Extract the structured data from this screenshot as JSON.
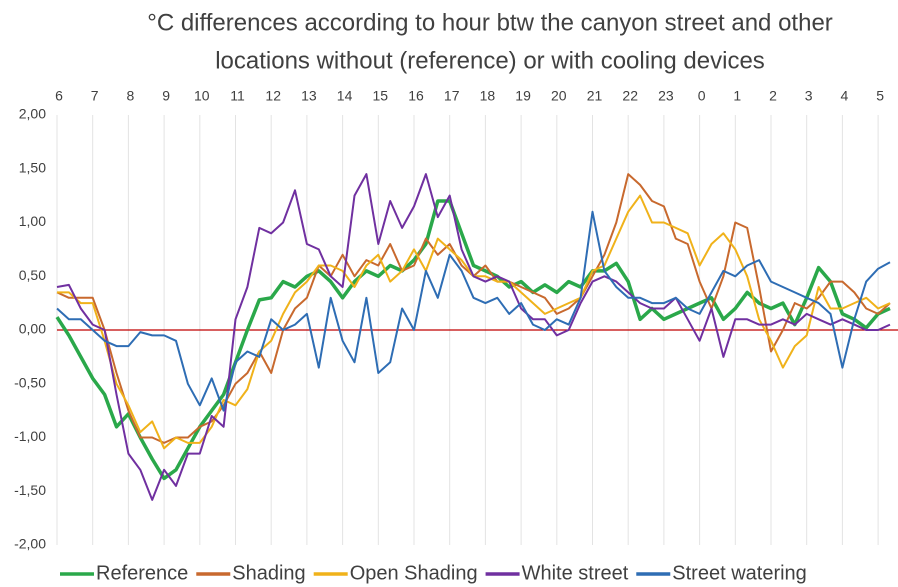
{
  "chart_data": {
    "type": "line",
    "title": [
      "°C differences according to hour  btw the canyon street and other",
      "locations without (reference) or with cooling devices"
    ],
    "categories": [
      "6",
      null,
      null,
      "7",
      null,
      null,
      "8",
      null,
      null,
      "9",
      null,
      null,
      "10",
      null,
      null,
      "11",
      null,
      null,
      "12",
      null,
      null,
      "13",
      null,
      null,
      "14",
      null,
      null,
      "15",
      null,
      null,
      "16",
      null,
      null,
      "17",
      null,
      null,
      "18",
      null,
      null,
      "19",
      null,
      null,
      "20",
      null,
      null,
      "21",
      null,
      null,
      "22",
      null,
      null,
      "23",
      null,
      null,
      "0",
      null,
      null,
      "1",
      null,
      null,
      "2",
      null,
      null,
      "3",
      null,
      null,
      "4",
      null,
      null,
      "5",
      null
    ],
    "ylim": [
      -2,
      2
    ],
    "yticks": [
      {
        "value": -2,
        "label": "-2,00"
      },
      {
        "value": -1.5,
        "label": "-1,50"
      },
      {
        "value": -1,
        "label": "-1,00"
      },
      {
        "value": -0.5,
        "label": "-0,50"
      },
      {
        "value": 0,
        "label": "0,00"
      },
      {
        "value": 0.5,
        "label": "0,50"
      },
      {
        "value": 1,
        "label": "1,00"
      },
      {
        "value": 1.5,
        "label": "1,50"
      },
      {
        "value": 2,
        "label": "2,00"
      }
    ],
    "grid": "x",
    "zero_line_color": "#c00000",
    "legend": "bottom",
    "series": [
      {
        "name": "Reference",
        "color": "#2aa84a",
        "values": [
          0.12,
          -0.05,
          -0.25,
          -0.45,
          -0.6,
          -0.9,
          -0.78,
          -1.0,
          -1.2,
          -1.38,
          -1.3,
          -1.1,
          -0.9,
          -0.75,
          -0.6,
          -0.3,
          0.0,
          0.28,
          0.3,
          0.45,
          0.4,
          0.5,
          0.55,
          0.45,
          0.3,
          0.45,
          0.55,
          0.5,
          0.6,
          0.55,
          0.65,
          0.8,
          1.2,
          1.2,
          0.9,
          0.6,
          0.55,
          0.5,
          0.4,
          0.45,
          0.35,
          0.42,
          0.35,
          0.45,
          0.4,
          0.55,
          0.55,
          0.62,
          0.45,
          0.1,
          0.2,
          0.1,
          0.15,
          0.2,
          0.25,
          0.3,
          0.1,
          0.2,
          0.35,
          0.25,
          0.2,
          0.25,
          0.05,
          0.3,
          0.58,
          0.45,
          0.15,
          0.1,
          0.02,
          0.15,
          0.2
        ]
      },
      {
        "name": "Shading",
        "color": "#c8692e",
        "values": [
          0.35,
          0.3,
          0.3,
          0.3,
          0.0,
          -0.4,
          -0.75,
          -1.0,
          -1.0,
          -1.05,
          -1.0,
          -1.0,
          -0.9,
          -0.85,
          -0.7,
          -0.5,
          -0.4,
          -0.2,
          -0.4,
          0.0,
          0.2,
          0.3,
          0.6,
          0.5,
          0.7,
          0.5,
          0.65,
          0.6,
          0.8,
          0.55,
          0.6,
          0.85,
          0.7,
          0.8,
          0.6,
          0.5,
          0.6,
          0.45,
          0.45,
          0.4,
          0.35,
          0.3,
          0.15,
          0.2,
          0.3,
          0.5,
          0.7,
          1.0,
          1.45,
          1.35,
          1.2,
          1.15,
          0.85,
          0.8,
          0.45,
          0.2,
          0.5,
          1.0,
          0.95,
          0.4,
          -0.2,
          0.0,
          0.25,
          0.2,
          0.3,
          0.45,
          0.45,
          0.35,
          0.2,
          0.15,
          0.25
        ]
      },
      {
        "name": "Open Shading",
        "color": "#f0b21a",
        "values": [
          0.35,
          0.35,
          0.25,
          0.25,
          -0.1,
          -0.5,
          -0.7,
          -0.95,
          -0.85,
          -1.1,
          -1.0,
          -1.05,
          -1.05,
          -0.9,
          -0.65,
          -0.7,
          -0.55,
          -0.2,
          -0.1,
          0.15,
          0.35,
          0.45,
          0.6,
          0.6,
          0.55,
          0.4,
          0.6,
          0.7,
          0.45,
          0.55,
          0.75,
          0.55,
          0.85,
          0.75,
          0.65,
          0.5,
          0.5,
          0.45,
          0.45,
          0.35,
          0.25,
          0.15,
          0.2,
          0.25,
          0.3,
          0.55,
          0.6,
          0.85,
          1.1,
          1.25,
          1.0,
          1.0,
          0.95,
          0.9,
          0.6,
          0.8,
          0.9,
          0.75,
          0.5,
          0.1,
          -0.1,
          -0.35,
          -0.15,
          -0.05,
          0.4,
          0.2,
          0.2,
          0.25,
          0.3,
          0.2,
          0.25
        ]
      },
      {
        "name": "White street",
        "color": "#7030a0",
        "values": [
          0.4,
          0.42,
          0.2,
          0.05,
          0.0,
          -0.6,
          -1.15,
          -1.3,
          -1.58,
          -1.3,
          -1.45,
          -1.15,
          -1.15,
          -0.8,
          -0.9,
          0.1,
          0.4,
          0.95,
          0.9,
          1.0,
          1.3,
          0.8,
          0.75,
          0.5,
          0.4,
          1.25,
          1.45,
          0.8,
          1.2,
          0.95,
          1.15,
          1.45,
          1.05,
          1.25,
          0.75,
          0.5,
          0.45,
          0.5,
          0.45,
          0.2,
          0.1,
          0.1,
          -0.05,
          0.0,
          0.25,
          0.45,
          0.5,
          0.45,
          0.35,
          0.25,
          0.2,
          0.2,
          0.3,
          0.1,
          -0.1,
          0.2,
          -0.25,
          0.1,
          0.1,
          0.05,
          0.05,
          0.1,
          0.05,
          0.15,
          0.1,
          0.05,
          0.1,
          0.05,
          0.0,
          0.0,
          0.05
        ]
      },
      {
        "name": "Street watering",
        "color": "#2e6db4",
        "values": [
          0.2,
          0.1,
          0.1,
          0.0,
          -0.1,
          -0.15,
          -0.15,
          -0.02,
          -0.05,
          -0.05,
          -0.1,
          -0.5,
          -0.7,
          -0.45,
          -0.75,
          -0.3,
          -0.2,
          -0.25,
          0.1,
          0.0,
          0.05,
          0.15,
          -0.35,
          0.3,
          -0.1,
          -0.3,
          0.3,
          -0.4,
          -0.3,
          0.2,
          0.0,
          0.55,
          0.3,
          0.7,
          0.55,
          0.3,
          0.25,
          0.3,
          0.15,
          0.25,
          0.05,
          0.0,
          0.1,
          0.05,
          0.3,
          1.1,
          0.55,
          0.4,
          0.3,
          0.3,
          0.25,
          0.25,
          0.3,
          0.2,
          0.15,
          0.35,
          0.55,
          0.5,
          0.6,
          0.65,
          0.45,
          0.4,
          0.35,
          0.3,
          0.25,
          0.15,
          -0.35,
          0.1,
          0.45,
          0.57,
          0.63
        ]
      }
    ]
  }
}
